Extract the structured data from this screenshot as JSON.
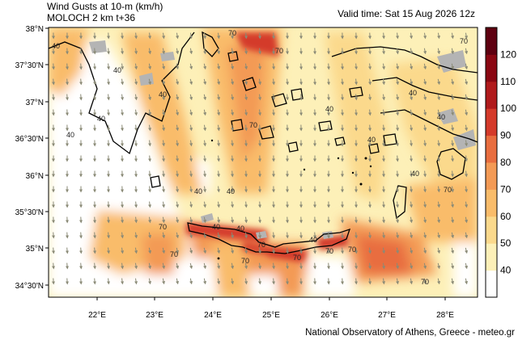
{
  "header": {
    "title_line1": "Wind Gusts at 10-m (km/h)",
    "title_line2": "MOLOCH 2 km t+36",
    "valid_time": "Valid time: Sat 15 Aug 2026 12z"
  },
  "footer": {
    "credit": "National Observatory of Athens, Greece - meteo.gr"
  },
  "latitude_labels": [
    "38°N",
    "37°30'N",
    "37°N",
    "36°30'N",
    "36°N",
    "35°30'N",
    "35°N",
    "34°30'N"
  ],
  "longitude_labels": [
    "22°E",
    "23°E",
    "24°E",
    "25°E",
    "26°E",
    "27°E",
    "28°E"
  ],
  "colorbar": {
    "ticks": [
      "40",
      "50",
      "60",
      "70",
      "80",
      "90",
      "100",
      "110",
      "120"
    ],
    "colors": [
      "#ffffff",
      "#fdf0b8",
      "#fbd98c",
      "#f9bc6a",
      "#f39a55",
      "#e86d3f",
      "#d43a2a",
      "#b01a1c",
      "#8a0712",
      "#5e0010"
    ]
  },
  "contour_labels": [
    "40",
    "70"
  ],
  "colors": {
    "land_gray": "#b4b4b4",
    "coast": "#000000",
    "arrow": "#8a8a76"
  }
}
